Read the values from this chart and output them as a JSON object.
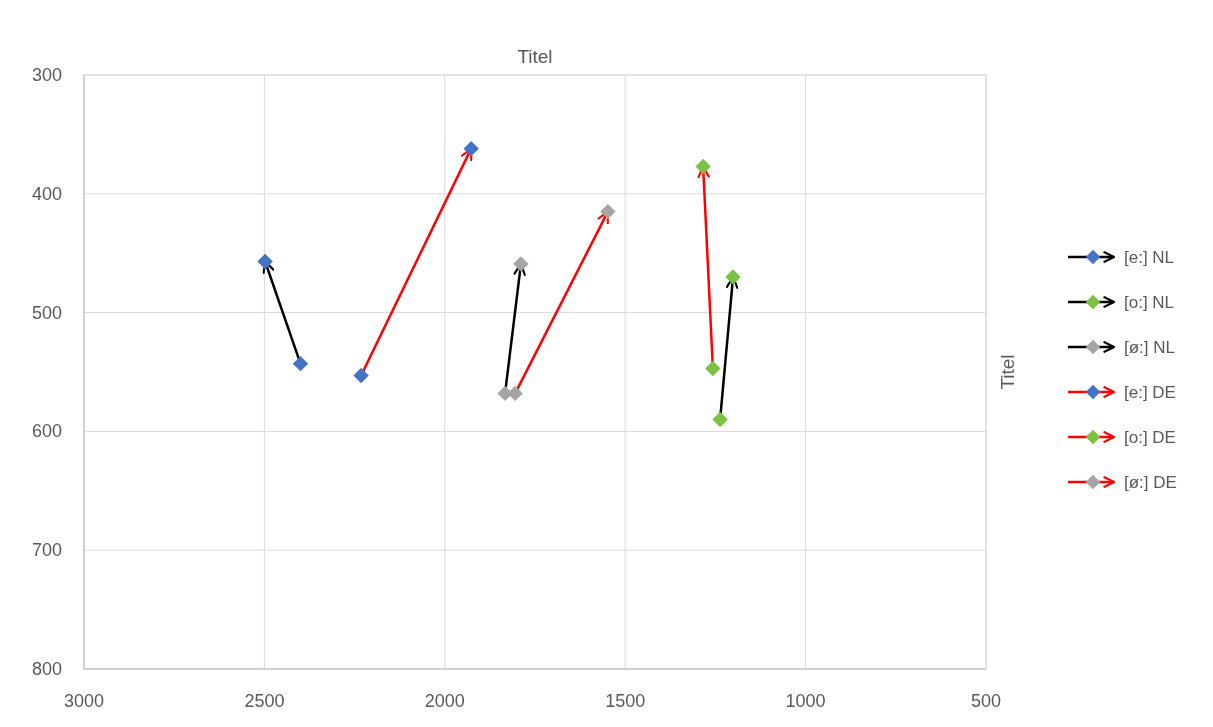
{
  "chart_data": {
    "type": "line",
    "title": "Titel",
    "ylabel": "Titel",
    "xlim": [
      3000,
      500
    ],
    "xticks": [
      3000,
      2500,
      2000,
      1500,
      1000,
      500
    ],
    "ylim": [
      800,
      300
    ],
    "yticks": [
      300,
      400,
      500,
      600,
      700,
      800
    ],
    "grid": true,
    "legend": "right",
    "marker": "diamond",
    "series": [
      {
        "name": "[e:] NL",
        "color": "#000000",
        "colors": [
          "#4472c4",
          "#4472c4"
        ],
        "x": [
          2400,
          2498
        ],
        "values": [
          543,
          457
        ]
      },
      {
        "name": "[o:] NL",
        "color": "#000000",
        "colors": [
          "#7cc242",
          "#7cc242"
        ],
        "x": [
          1237,
          1201
        ],
        "values": [
          590,
          470
        ]
      },
      {
        "name": "[ø:] NL",
        "color": "#000000",
        "colors": [
          "#a5a5a5",
          "#a5a5a5"
        ],
        "x": [
          1833,
          1789
        ],
        "values": [
          568,
          459
        ]
      },
      {
        "name": "[e:] DE",
        "color": "#ff0000",
        "colors": [
          "#4472c4",
          "#4472c4"
        ],
        "x": [
          2232,
          1927
        ],
        "values": [
          553,
          362
        ]
      },
      {
        "name": "[o:] DE",
        "color": "#ff0000",
        "colors": [
          "#7cc242",
          "#7cc242"
        ],
        "x": [
          1257,
          1284
        ],
        "values": [
          547,
          377
        ]
      },
      {
        "name": "[ø:] DE",
        "color": "#ff0000",
        "colors": [
          "#a5a5a5",
          "#a5a5a5"
        ],
        "x": [
          1805,
          1548
        ],
        "values": [
          568,
          415
        ]
      }
    ]
  }
}
